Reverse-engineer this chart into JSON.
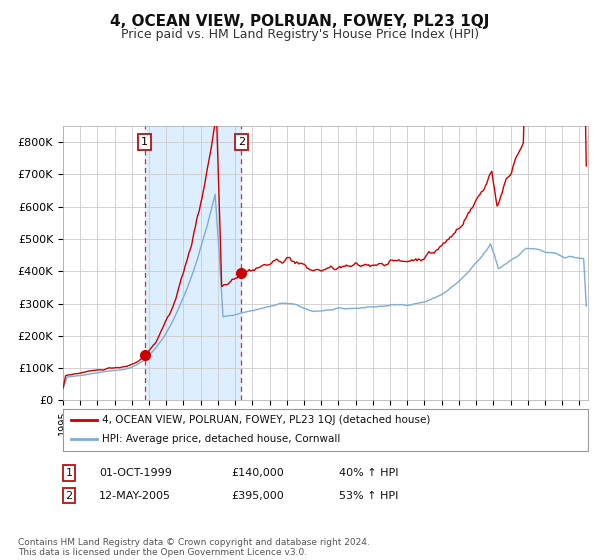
{
  "title": "4, OCEAN VIEW, POLRUAN, FOWEY, PL23 1QJ",
  "subtitle": "Price paid vs. HM Land Registry's House Price Index (HPI)",
  "title_fontsize": 11,
  "subtitle_fontsize": 9,
  "ylim": [
    0,
    850000
  ],
  "xlim_start": 1995.0,
  "xlim_end": 2025.5,
  "red_line_color": "#cc0000",
  "blue_line_color": "#7eadd4",
  "background_color": "#ffffff",
  "grid_color": "#cccccc",
  "purchase1_year": 1999.75,
  "purchase1_price": 140000,
  "purchase2_year": 2005.36,
  "purchase2_price": 395000,
  "legend_line1": "4, OCEAN VIEW, POLRUAN, FOWEY, PL23 1QJ (detached house)",
  "legend_line2": "HPI: Average price, detached house, Cornwall",
  "annotation1_date": "01-OCT-1999",
  "annotation1_price": "£140,000",
  "annotation1_hpi": "40% ↑ HPI",
  "annotation2_date": "12-MAY-2005",
  "annotation2_price": "£395,000",
  "annotation2_hpi": "53% ↑ HPI",
  "footer": "Contains HM Land Registry data © Crown copyright and database right 2024.\nThis data is licensed under the Open Government Licence v3.0.",
  "shaded_region_color": "#ddeeff",
  "yticks": [
    0,
    100000,
    200000,
    300000,
    400000,
    500000,
    600000,
    700000,
    800000
  ],
  "ytick_labels": [
    "£0",
    "£100K",
    "£200K",
    "£300K",
    "£400K",
    "£500K",
    "£600K",
    "£700K",
    "£800K"
  ]
}
